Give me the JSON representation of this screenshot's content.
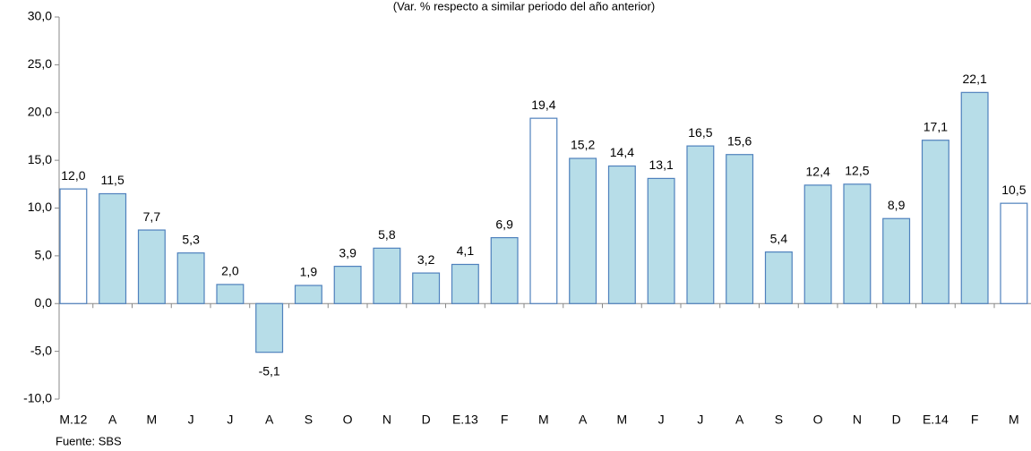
{
  "chart_data": {
    "type": "bar",
    "title": "(Var. % respecto a similar periodo del año anterior)",
    "source": "Fuente: SBS",
    "categories": [
      "M.12",
      "A",
      "M",
      "J",
      "J",
      "A",
      "S",
      "O",
      "N",
      "D",
      "E.13",
      "F",
      "M",
      "A",
      "M",
      "J",
      "J",
      "A",
      "S",
      "O",
      "N",
      "D",
      "E.14",
      "F",
      "M"
    ],
    "values": [
      12.0,
      11.5,
      7.7,
      5.3,
      2.0,
      -5.1,
      1.9,
      3.9,
      5.8,
      3.2,
      4.1,
      6.9,
      19.4,
      15.2,
      14.4,
      13.1,
      16.5,
      15.6,
      5.4,
      12.4,
      12.5,
      8.9,
      17.1,
      22.1,
      10.5
    ],
    "value_labels": [
      "12,0",
      "11,5",
      "7,7",
      "5,3",
      "2,0",
      "-5,1",
      "1,9",
      "3,9",
      "5,8",
      "3,2",
      "4,1",
      "6,9",
      "19,4",
      "15,2",
      "14,4",
      "13,1",
      "16,5",
      "15,6",
      "5,4",
      "12,4",
      "12,5",
      "8,9",
      "17,1",
      "22,1",
      "10,5"
    ],
    "colors": [
      "#ffffff",
      "#b7dde8",
      "#b7dde8",
      "#b7dde8",
      "#b7dde8",
      "#b7dde8",
      "#b7dde8",
      "#b7dde8",
      "#b7dde8",
      "#b7dde8",
      "#b7dde8",
      "#b7dde8",
      "#ffffff",
      "#b7dde8",
      "#b7dde8",
      "#b7dde8",
      "#b7dde8",
      "#b7dde8",
      "#b7dde8",
      "#b7dde8",
      "#b7dde8",
      "#b7dde8",
      "#b7dde8",
      "#b7dde8",
      "#ffffff"
    ],
    "edgecolor": "#4f81bd",
    "ylim": [
      -10,
      30
    ],
    "yticks": [
      {
        "value": -10,
        "label": "-10,0"
      },
      {
        "value": -5,
        "label": "-5,0"
      },
      {
        "value": 0,
        "label": "0,0"
      },
      {
        "value": 5,
        "label": "5,0"
      },
      {
        "value": 10,
        "label": "10,0"
      },
      {
        "value": 15,
        "label": "15,0"
      },
      {
        "value": 20,
        "label": "20,0"
      },
      {
        "value": 25,
        "label": "25,0"
      },
      {
        "value": 30,
        "label": "30,0"
      }
    ]
  }
}
